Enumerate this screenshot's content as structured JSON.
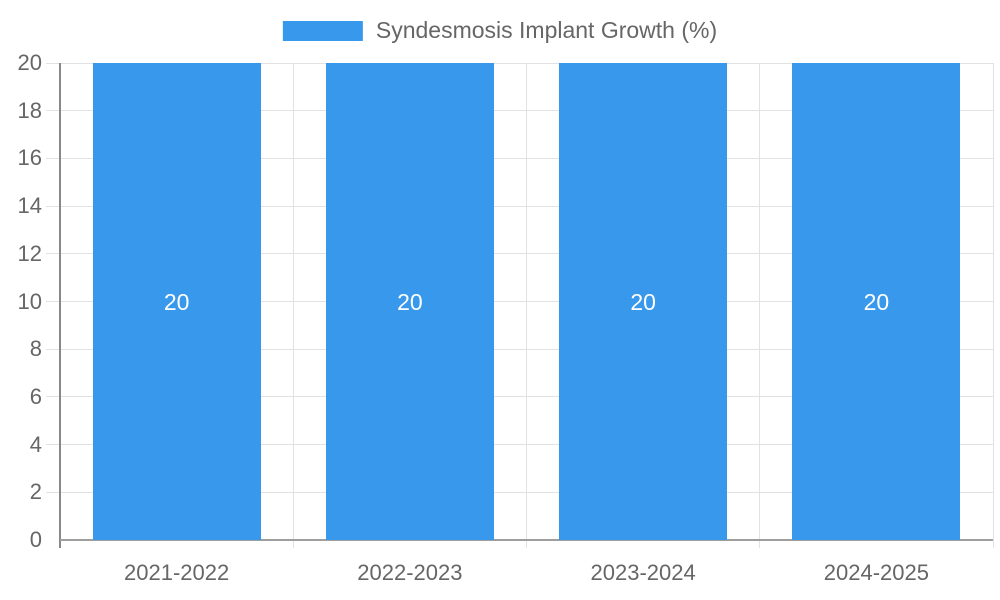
{
  "chart_data": {
    "type": "bar",
    "title": "Syndesmosis Implant Growth (%)",
    "categories": [
      "2021-2022",
      "2022-2023",
      "2023-2024",
      "2024-2025"
    ],
    "values": [
      20,
      20,
      20,
      20
    ],
    "bar_labels": [
      "20",
      "20",
      "20",
      "20"
    ],
    "xlabel": "",
    "ylabel": "",
    "ylim": [
      0,
      20
    ],
    "yticks": [
      0,
      2,
      4,
      6,
      8,
      10,
      12,
      14,
      16,
      18,
      20
    ],
    "grid": true,
    "legend_position": "top",
    "legend_entries": [
      "Syndesmosis Implant Growth (%)"
    ],
    "colors": {
      "bar": "#3898EC",
      "bar_label": "#FFFFFF",
      "tick_label": "#666666",
      "grid": "#E2E2E2",
      "axis_y": "#888888",
      "axis_x": "#9E9E9E",
      "background": "#FFFFFF"
    }
  }
}
